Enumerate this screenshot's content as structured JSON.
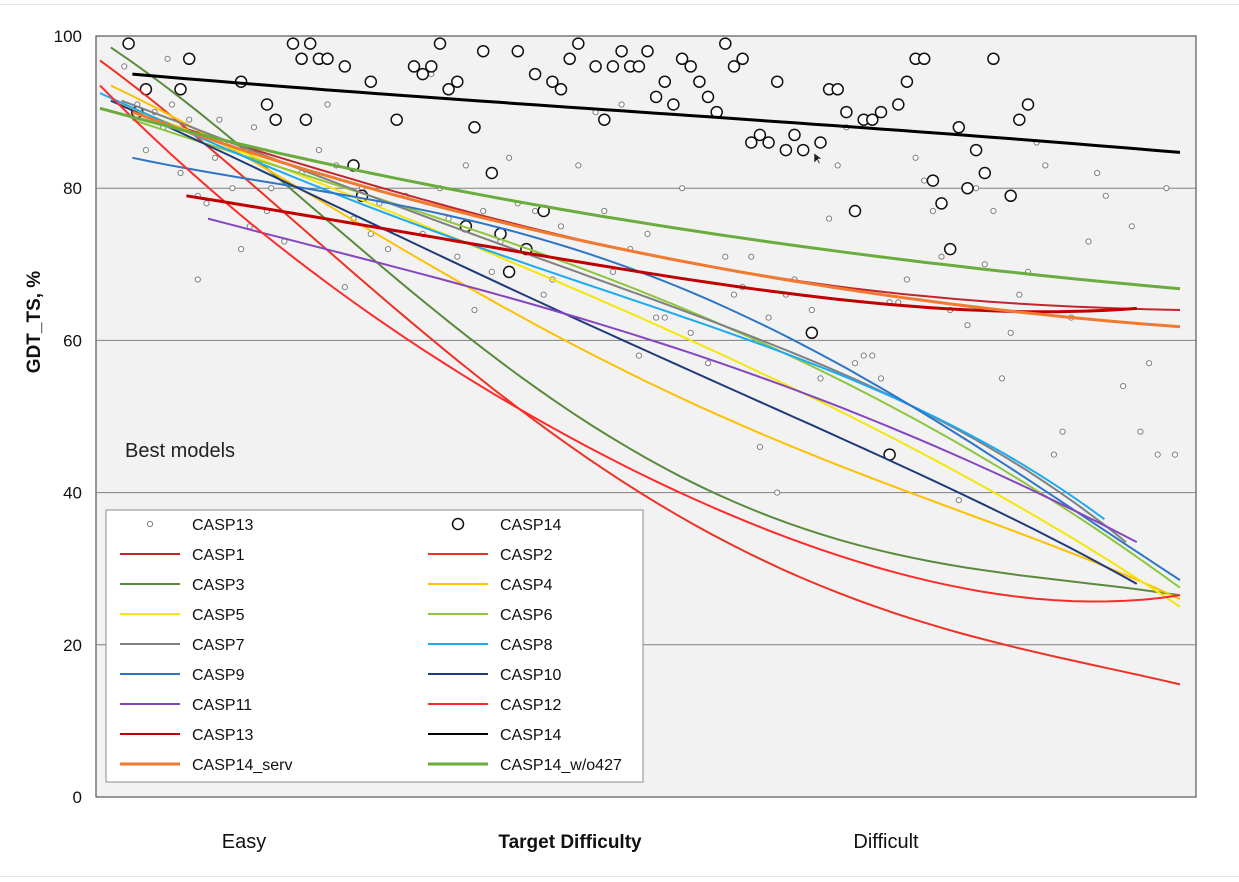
{
  "chart_data": {
    "type": "scatter",
    "ylabel": "GDT_TS, %",
    "xlabel": "Target Difficulty",
    "x_category_labels": [
      "Easy",
      "Difficult"
    ],
    "annotation": "Best models",
    "ylim": [
      0,
      100
    ],
    "xlim": [
      0,
      100
    ],
    "yticks": [
      0,
      20,
      40,
      60,
      80,
      100
    ],
    "grid": true,
    "legend_placement": "bottom-left",
    "background": "#f2f2f2",
    "line_series": [
      {
        "name": "CASP1",
        "color": "#c0272d",
        "width": 2,
        "x": [
          4,
          25,
          50,
          75,
          100
        ],
        "y": [
          89.5,
          80.5,
          71.5,
          66,
          64
        ]
      },
      {
        "name": "CASP2",
        "color": "#ee3124",
        "width": 2,
        "x": [
          0,
          25,
          50,
          75,
          100
        ],
        "y": [
          96.8,
          67,
          40,
          23.5,
          14.8
        ]
      },
      {
        "name": "CASP3",
        "color": "#5a8a3c",
        "width": 2,
        "x": [
          1,
          25,
          50,
          75,
          100
        ],
        "y": [
          98.5,
          71,
          45,
          31.5,
          26.5
        ]
      },
      {
        "name": "CASP4",
        "color": "#ffc000",
        "width": 2,
        "x": [
          1,
          25,
          50,
          75,
          100
        ],
        "y": [
          93.5,
          74.5,
          55,
          40,
          26
        ]
      },
      {
        "name": "CASP5",
        "color": "#f5e60a",
        "width": 2,
        "x": [
          2,
          25,
          50,
          75,
          100
        ],
        "y": [
          91,
          78,
          63,
          46,
          25
        ]
      },
      {
        "name": "CASP6",
        "color": "#8cc63e",
        "width": 2,
        "x": [
          3,
          25,
          50,
          75,
          100
        ],
        "y": [
          89,
          79,
          66.5,
          50,
          27.5
        ]
      },
      {
        "name": "CASP7",
        "color": "#808080",
        "width": 2,
        "x": [
          2,
          25,
          50,
          75,
          95
        ],
        "y": [
          91.5,
          79,
          66,
          51.5,
          33.5
        ]
      },
      {
        "name": "CASP8",
        "color": "#1eaaf1",
        "width": 2,
        "x": [
          0,
          25,
          50,
          75,
          93
        ],
        "y": [
          92.5,
          77.5,
          65,
          51.5,
          36.5
        ]
      },
      {
        "name": "CASP9",
        "color": "#2e75c5",
        "width": 2,
        "x": [
          3,
          25,
          50,
          75,
          100
        ],
        "y": [
          84,
          78.5,
          69,
          51.5,
          28.5
        ]
      },
      {
        "name": "CASP10",
        "color": "#1f3a7a",
        "width": 2,
        "x": [
          1,
          25,
          50,
          75,
          96
        ],
        "y": [
          91.5,
          75.5,
          59,
          43,
          28
        ]
      },
      {
        "name": "CASP11",
        "color": "#8646c0",
        "width": 2,
        "x": [
          10,
          25,
          50,
          75,
          96
        ],
        "y": [
          76,
          70.5,
          60.5,
          47.5,
          33.5
        ]
      },
      {
        "name": "CASP12",
        "color": "#ff2a2a",
        "width": 2,
        "x": [
          0,
          25,
          50,
          75,
          100
        ],
        "y": [
          93.5,
          63.5,
          42.5,
          29,
          26.5
        ]
      },
      {
        "name": "CASP13",
        "color": "#c00000",
        "width": 3,
        "x": [
          8,
          25,
          50,
          75,
          96
        ],
        "y": [
          79,
          75,
          69,
          64.5,
          64.2
        ]
      },
      {
        "name": "CASP14",
        "color": "#000000",
        "width": 3,
        "x": [
          3,
          25,
          50,
          75,
          100
        ],
        "y": [
          95,
          92.5,
          90,
          87.5,
          84.7
        ]
      },
      {
        "name": "CASP14_serv",
        "color": "#f07a30",
        "width": 3,
        "x": [
          3,
          25,
          50,
          75,
          100
        ],
        "y": [
          90,
          80,
          71.5,
          65.5,
          61.8
        ]
      },
      {
        "name": "CASP14_w/o427",
        "color": "#6aac3e",
        "width": 3,
        "x": [
          0,
          25,
          50,
          75,
          100
        ],
        "y": [
          90.5,
          82,
          75.5,
          70.5,
          66.8
        ]
      }
    ],
    "scatter_series": [
      {
        "name": "CASP13",
        "marker": "small-circle",
        "points": [
          [
            0.5,
            96
          ],
          [
            2,
            91
          ],
          [
            3,
            85
          ],
          [
            4,
            90
          ],
          [
            5,
            88
          ],
          [
            6,
            91
          ],
          [
            5.5,
            97
          ],
          [
            7,
            82
          ],
          [
            8,
            89
          ],
          [
            9,
            79
          ],
          [
            9,
            68
          ],
          [
            10,
            78
          ],
          [
            11,
            84
          ],
          [
            11.5,
            89
          ],
          [
            12,
            86
          ],
          [
            13,
            80
          ],
          [
            14,
            72
          ],
          [
            15,
            75
          ],
          [
            15.5,
            88
          ],
          [
            17,
            77
          ],
          [
            17.5,
            80
          ],
          [
            19,
            73
          ],
          [
            21,
            82
          ],
          [
            23,
            85
          ],
          [
            24,
            91
          ],
          [
            25,
            83
          ],
          [
            26,
            67
          ],
          [
            27,
            76
          ],
          [
            28,
            80
          ],
          [
            29,
            74
          ],
          [
            30,
            78
          ],
          [
            31,
            72
          ],
          [
            33,
            79
          ],
          [
            35,
            74
          ],
          [
            36,
            95
          ],
          [
            37,
            80
          ],
          [
            38,
            76
          ],
          [
            39,
            71
          ],
          [
            40,
            83
          ],
          [
            41,
            64
          ],
          [
            42,
            77
          ],
          [
            43,
            69
          ],
          [
            44,
            73
          ],
          [
            45,
            84
          ],
          [
            46,
            78
          ],
          [
            48,
            77
          ],
          [
            49,
            66
          ],
          [
            50,
            68
          ],
          [
            51,
            75
          ],
          [
            53,
            83
          ],
          [
            55,
            90
          ],
          [
            56,
            77
          ],
          [
            57,
            69
          ],
          [
            58,
            91
          ],
          [
            59,
            72
          ],
          [
            60,
            58
          ],
          [
            61,
            74
          ],
          [
            62,
            63
          ],
          [
            63,
            63
          ],
          [
            65,
            80
          ],
          [
            66,
            61
          ],
          [
            68,
            57
          ],
          [
            70,
            71
          ],
          [
            71,
            66
          ],
          [
            72,
            67
          ],
          [
            73,
            71
          ],
          [
            74,
            46
          ],
          [
            75,
            63
          ],
          [
            76,
            40
          ],
          [
            77,
            66
          ],
          [
            78,
            68
          ],
          [
            80,
            64
          ],
          [
            81,
            55
          ],
          [
            82,
            76
          ],
          [
            83,
            83
          ],
          [
            84,
            88
          ],
          [
            85,
            57
          ],
          [
            86,
            58
          ],
          [
            87,
            58
          ],
          [
            88,
            55
          ],
          [
            89,
            65
          ],
          [
            90,
            65
          ],
          [
            91,
            68
          ],
          [
            92,
            84
          ],
          [
            93,
            81
          ],
          [
            94,
            77
          ],
          [
            95,
            71
          ],
          [
            96,
            64
          ],
          [
            97,
            39
          ],
          [
            98,
            62
          ],
          [
            99,
            80
          ],
          [
            100,
            70
          ],
          [
            101,
            77
          ],
          [
            102,
            55
          ],
          [
            103,
            61
          ],
          [
            104,
            66
          ],
          [
            105,
            69
          ],
          [
            106,
            86
          ],
          [
            107,
            83
          ],
          [
            108,
            45
          ],
          [
            109,
            48
          ],
          [
            110,
            63
          ],
          [
            112,
            73
          ],
          [
            113,
            82
          ],
          [
            114,
            79
          ],
          [
            116,
            54
          ],
          [
            117,
            75
          ],
          [
            118,
            48
          ],
          [
            119,
            57
          ],
          [
            120,
            45
          ],
          [
            121,
            80
          ],
          [
            122,
            45
          ]
        ]
      },
      {
        "name": "CASP14",
        "marker": "large-circle",
        "points": [
          [
            1,
            99
          ],
          [
            2,
            90
          ],
          [
            3,
            93
          ],
          [
            7,
            93
          ],
          [
            8,
            97
          ],
          [
            14,
            94
          ],
          [
            17,
            91
          ],
          [
            18,
            89
          ],
          [
            20,
            99
          ],
          [
            21,
            97
          ],
          [
            21.5,
            89
          ],
          [
            22,
            99
          ],
          [
            23,
            97
          ],
          [
            24,
            97
          ],
          [
            26,
            96
          ],
          [
            27,
            83
          ],
          [
            28,
            79
          ],
          [
            29,
            94
          ],
          [
            32,
            89
          ],
          [
            34,
            96
          ],
          [
            35,
            95
          ],
          [
            36,
            96
          ],
          [
            37,
            99
          ],
          [
            38,
            93
          ],
          [
            39,
            94
          ],
          [
            40,
            75
          ],
          [
            41,
            88
          ],
          [
            42,
            98
          ],
          [
            43,
            82
          ],
          [
            44,
            74
          ],
          [
            45,
            69
          ],
          [
            46,
            98
          ],
          [
            47,
            72
          ],
          [
            48,
            95
          ],
          [
            49,
            77
          ],
          [
            50,
            94
          ],
          [
            51,
            93
          ],
          [
            52,
            97
          ],
          [
            53,
            99
          ],
          [
            55,
            96
          ],
          [
            56,
            89
          ],
          [
            57,
            96
          ],
          [
            58,
            98
          ],
          [
            59,
            96
          ],
          [
            60,
            96
          ],
          [
            61,
            98
          ],
          [
            62,
            92
          ],
          [
            63,
            94
          ],
          [
            64,
            91
          ],
          [
            65,
            97
          ],
          [
            66,
            96
          ],
          [
            67,
            94
          ],
          [
            68,
            92
          ],
          [
            69,
            90
          ],
          [
            70,
            99
          ],
          [
            71,
            96
          ],
          [
            72,
            97
          ],
          [
            73,
            86
          ],
          [
            74,
            87
          ],
          [
            75,
            86
          ],
          [
            76,
            94
          ],
          [
            77,
            85
          ],
          [
            78,
            87
          ],
          [
            79,
            85
          ],
          [
            80,
            61
          ],
          [
            81,
            86
          ],
          [
            82,
            93
          ],
          [
            83,
            93
          ],
          [
            84,
            90
          ],
          [
            85,
            77
          ],
          [
            86,
            89
          ],
          [
            87,
            89
          ],
          [
            88,
            90
          ],
          [
            89,
            45
          ],
          [
            90,
            91
          ],
          [
            91,
            94
          ],
          [
            92,
            97
          ],
          [
            93,
            97
          ],
          [
            94,
            81
          ],
          [
            95,
            78
          ],
          [
            96,
            72
          ],
          [
            97,
            88
          ],
          [
            98,
            80
          ],
          [
            99,
            85
          ],
          [
            100,
            82
          ],
          [
            101,
            97
          ],
          [
            103,
            79
          ],
          [
            104,
            89
          ],
          [
            105,
            91
          ]
        ]
      }
    ]
  },
  "legend": {
    "entries": [
      {
        "label": "CASP13",
        "kind": "small-circle"
      },
      {
        "label": "CASP14",
        "kind": "large-circle"
      },
      {
        "label": "CASP1",
        "kind": "line",
        "color": "#c0272d",
        "width": 2
      },
      {
        "label": "CASP2",
        "kind": "line",
        "color": "#ee3124",
        "width": 2
      },
      {
        "label": "CASP3",
        "kind": "line",
        "color": "#5a8a3c",
        "width": 2
      },
      {
        "label": "CASP4",
        "kind": "line",
        "color": "#ffc000",
        "width": 2
      },
      {
        "label": "CASP5",
        "kind": "line",
        "color": "#f5e60a",
        "width": 2
      },
      {
        "label": "CASP6",
        "kind": "line",
        "color": "#8cc63e",
        "width": 2
      },
      {
        "label": "CASP7",
        "kind": "line",
        "color": "#808080",
        "width": 2
      },
      {
        "label": "CASP8",
        "kind": "line",
        "color": "#1eaaf1",
        "width": 2
      },
      {
        "label": "CASP9",
        "kind": "line",
        "color": "#2e75c5",
        "width": 2
      },
      {
        "label": "CASP10",
        "kind": "line",
        "color": "#1f3a7a",
        "width": 2
      },
      {
        "label": "CASP11",
        "kind": "line",
        "color": "#8646c0",
        "width": 2
      },
      {
        "label": "CASP12",
        "kind": "line",
        "color": "#ff2a2a",
        "width": 2
      },
      {
        "label": "CASP13",
        "kind": "line",
        "color": "#c00000",
        "width": 2
      },
      {
        "label": "CASP14",
        "kind": "line",
        "color": "#000000",
        "width": 2
      },
      {
        "label": "CASP14_serv",
        "kind": "line",
        "color": "#f07a30",
        "width": 3
      },
      {
        "label": "CASP14_w/o427",
        "kind": "line",
        "color": "#6aac3e",
        "width": 3
      }
    ]
  }
}
